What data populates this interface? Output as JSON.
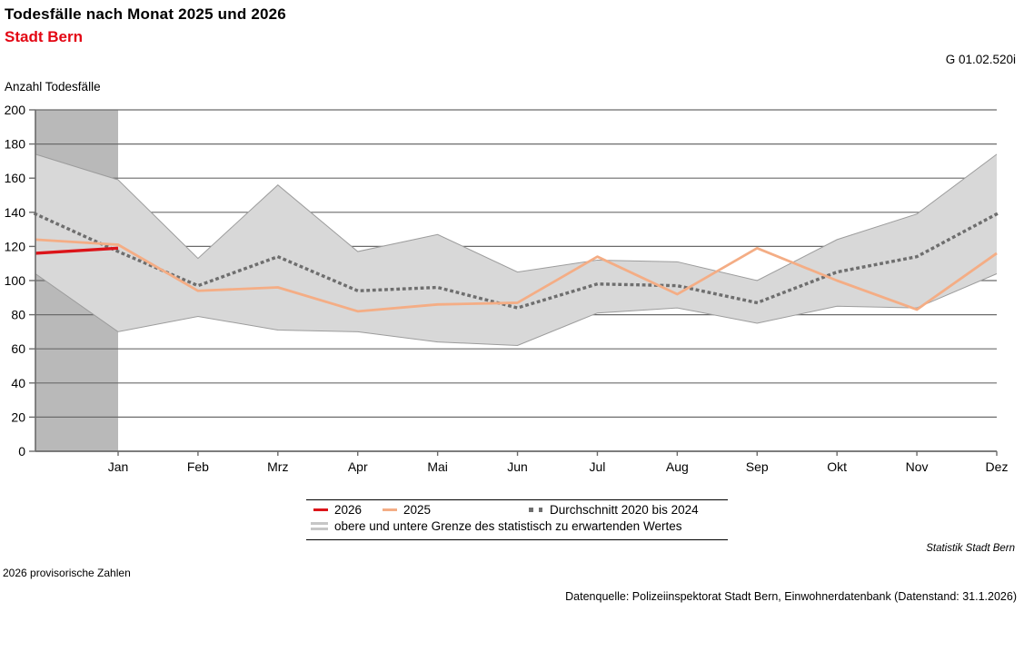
{
  "header": {
    "title": "Todesfälle nach Monat 2025 und 2026",
    "subtitle": "Stadt Bern",
    "chart_code": "G 01.02.520i",
    "y_axis_title": "Anzahl Todesfälle"
  },
  "footer": {
    "source_attribution": "Statistik Stadt Bern",
    "note": "2026 provisorische Zahlen",
    "datasource": "Datenquelle: Polizeiinspektorat Stadt Bern, Einwohnerdatenbank (Datenstand: 31.1.2026)"
  },
  "colors": {
    "subtitle_red": "#e30613",
    "series_2026": "#dc1419",
    "series_2025": "#f4ad85",
    "series_avg": "#6e6e6e",
    "band_fill": "#d8d8d8",
    "band_edge": "#9c9c9c",
    "band_swatch": "#c6c6c6",
    "strip_fill": "#b9b9b9",
    "grid": "#6b6b6b",
    "text": "#000000"
  },
  "chart_data": {
    "type": "line",
    "title": "Todesfälle nach Monat 2025 und 2026",
    "subtitle": "Stadt Bern",
    "ylabel": "Anzahl Todesfälle",
    "ylim": [
      0,
      200
    ],
    "yticks": [
      0,
      20,
      40,
      60,
      80,
      100,
      120,
      140,
      160,
      180,
      200
    ],
    "grid": "horizontal",
    "legend_position": "bottom",
    "categories": [
      "",
      "Jan",
      "Feb",
      "Mrz",
      "Apr",
      "Mai",
      "Jun",
      "Jul",
      "Aug",
      "Sep",
      "Okt",
      "Nov",
      "Dez"
    ],
    "series": [
      {
        "name": "2026",
        "style": "solid",
        "values": [
          116,
          119,
          null,
          null,
          null,
          null,
          null,
          null,
          null,
          null,
          null,
          null,
          null
        ]
      },
      {
        "name": "2025",
        "style": "solid",
        "values": [
          124,
          121,
          94,
          96,
          82,
          86,
          87,
          114,
          92,
          119,
          100,
          83,
          116
        ]
      },
      {
        "name": "Durchschnitt 2020 bis 2024",
        "style": "dotted",
        "values": [
          139,
          117,
          97,
          114,
          94,
          96,
          84,
          98,
          97,
          87,
          105,
          114,
          139
        ]
      }
    ],
    "band": {
      "name": "obere und untere Grenze des statistisch zu erwartenden Wertes",
      "upper": [
        174,
        159,
        113,
        156,
        117,
        127,
        105,
        112,
        111,
        100,
        124,
        139,
        174
      ],
      "lower": [
        104,
        70,
        79,
        71,
        70,
        64,
        62,
        81,
        84,
        75,
        85,
        84,
        104
      ]
    },
    "highlight_strip": {
      "from_category_index": 0,
      "to_category_index": 1
    }
  }
}
